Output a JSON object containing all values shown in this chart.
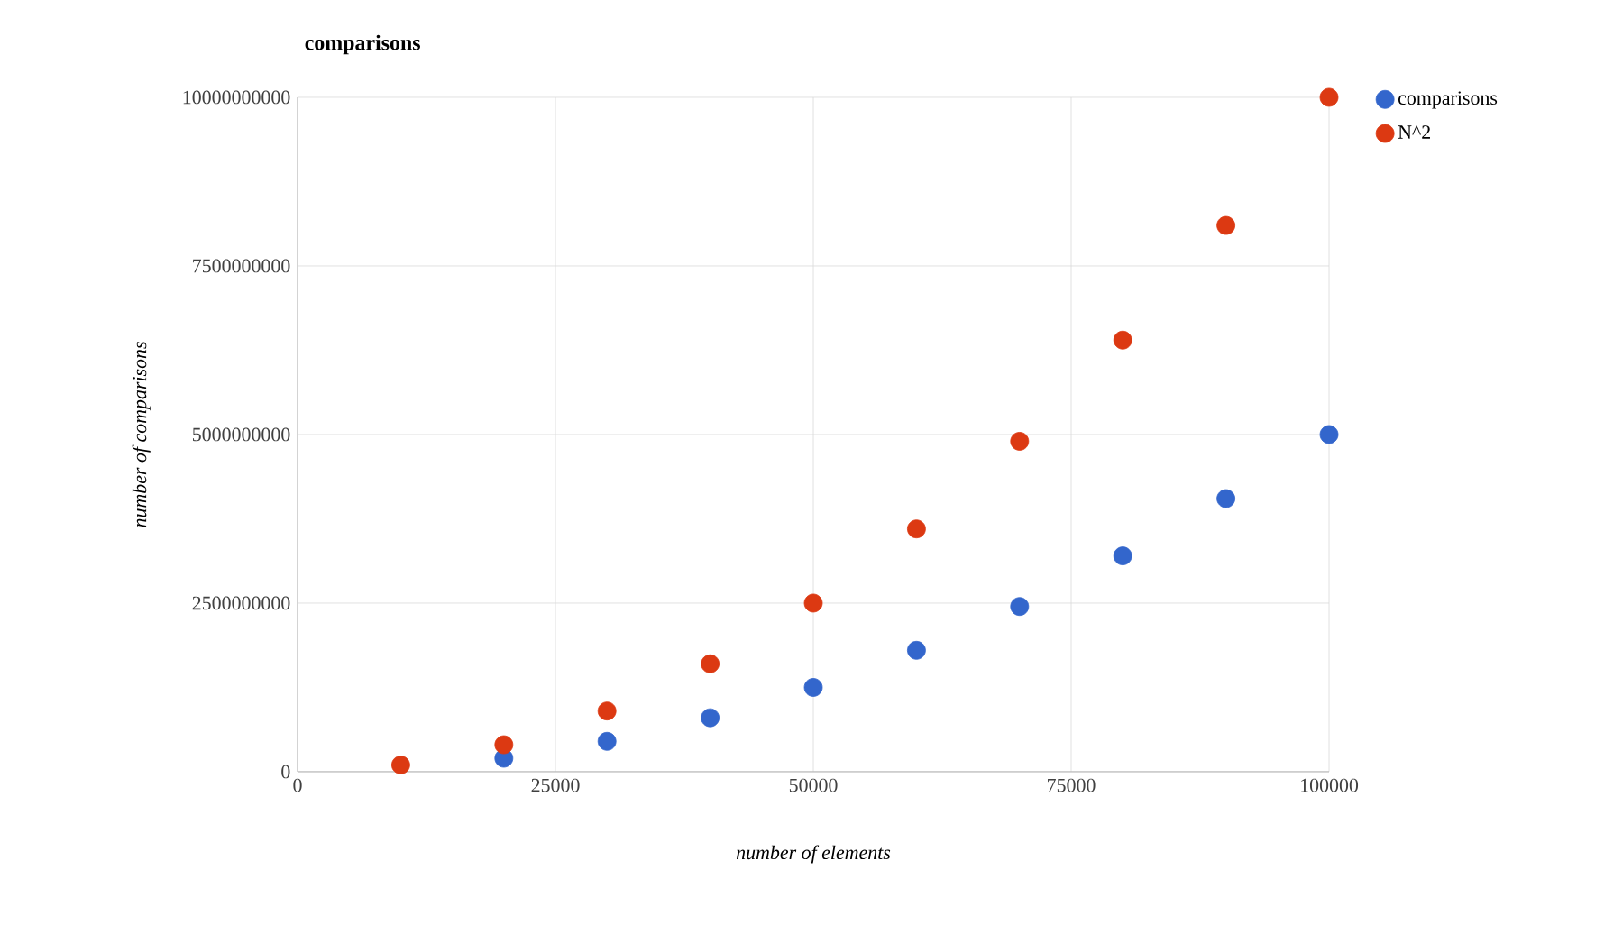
{
  "chart_data": {
    "type": "scatter",
    "title": "comparisons",
    "xlabel": "number of elements",
    "ylabel": "number of comparisons",
    "x": [
      10000,
      20000,
      30000,
      40000,
      50000,
      60000,
      70000,
      80000,
      90000,
      100000
    ],
    "series": [
      {
        "name": "comparisons",
        "color": "#3366cc",
        "values": [
          null,
          200000000,
          450000000,
          800000000,
          1250000000,
          1800000000,
          2450000000,
          3200000000,
          4050000000,
          5000000000
        ]
      },
      {
        "name": "N^2",
        "color": "#dc3912",
        "values": [
          100000000,
          400000000,
          900000000,
          1600000000,
          2500000000,
          3600000000,
          4900000000,
          6400000000,
          8100000000,
          10000000000
        ]
      }
    ],
    "xlim": [
      0,
      100000
    ],
    "ylim": [
      0,
      10000000000
    ],
    "xticks": [
      0,
      25000,
      50000,
      75000,
      100000
    ],
    "yticks": [
      0,
      2500000000,
      5000000000,
      7500000000,
      10000000000
    ],
    "grid": true,
    "legend": "right",
    "marker": "circle"
  }
}
